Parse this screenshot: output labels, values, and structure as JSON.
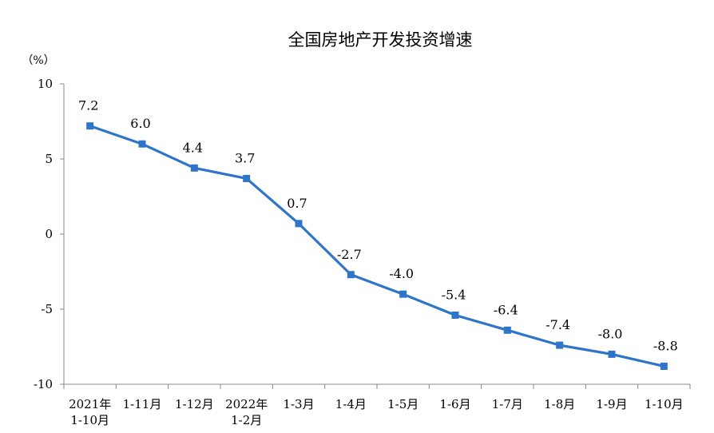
{
  "chart_data": {
    "type": "line",
    "title": "全国房地产开发投资增速",
    "ylabel": "（%）",
    "ylim": [
      -10,
      10
    ],
    "yticks": [
      "10",
      "5",
      "0",
      "-5",
      "-10"
    ],
    "ytick_values": [
      10,
      5,
      0,
      -5,
      -10
    ],
    "categories": [
      {
        "line1": "2021年",
        "line2": "1-10月"
      },
      {
        "line1": "1-11月",
        "line2": ""
      },
      {
        "line1": "1-12月",
        "line2": ""
      },
      {
        "line1": "2022年",
        "line2": "1-2月"
      },
      {
        "line1": "1-3月",
        "line2": ""
      },
      {
        "line1": "1-4月",
        "line2": ""
      },
      {
        "line1": "1-5月",
        "line2": ""
      },
      {
        "line1": "1-6月",
        "line2": ""
      },
      {
        "line1": "1-7月",
        "line2": ""
      },
      {
        "line1": "1-8月",
        "line2": ""
      },
      {
        "line1": "1-9月",
        "line2": ""
      },
      {
        "line1": "1-10月",
        "line2": ""
      }
    ],
    "series": [
      {
        "values": [
          7.2,
          6.0,
          4.4,
          3.7,
          0.7,
          -2.7,
          -4.0,
          -5.4,
          -6.4,
          -7.4,
          -8.0,
          -8.8
        ],
        "labels": [
          "7.2",
          "6.0",
          "4.4",
          "3.7",
          "0.7",
          "-2.7",
          "-4.0",
          "-5.4",
          "-6.4",
          "-7.4",
          "-8.0",
          "-8.8"
        ],
        "color": "#2e75c9"
      }
    ],
    "grid": false,
    "legend": "none"
  }
}
